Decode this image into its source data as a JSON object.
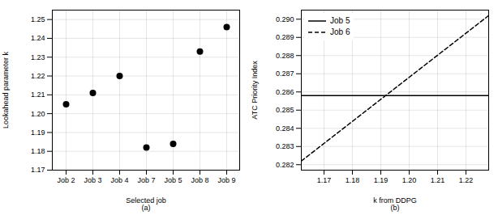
{
  "chart_data": [
    {
      "type": "scatter",
      "x_label": "Selected job\n(a)",
      "y_label": "Lookahead parameter k",
      "categories": [
        "Job 2",
        "Job 3",
        "Job 4",
        "Job 7",
        "Job 5",
        "Job 8",
        "Job 9"
      ],
      "values": [
        1.205,
        1.211,
        1.22,
        1.182,
        1.184,
        1.233,
        1.246
      ],
      "color": "black",
      "ylim": [
        1.17,
        1.255
      ],
      "yticks": [
        1.17,
        1.18,
        1.19,
        {
          "value": 1.2,
          "label": "1.20"
        },
        1.21,
        1.22,
        1.23,
        1.24,
        1.25
      ],
      "grid": true
    },
    {
      "type": "line",
      "x_label": "k from DDPG\n(b)",
      "y_label": "ATC Priority Index",
      "x": [
        1.162,
        1.228
      ],
      "series": [
        {
          "name": "Job 5",
          "color": "black",
          "line_style": "solid",
          "values": [
            0.2858,
            0.2858
          ]
        },
        {
          "name": "Job 6",
          "color": "black",
          "line_style": "dashed",
          "values": [
            0.2822,
            0.2902
          ]
        }
      ],
      "xlim": [
        1.162,
        1.228
      ],
      "ylim": [
        0.2817,
        0.2905
      ],
      "xticks": [
        1.17,
        1.18,
        1.19,
        {
          "value": 1.2,
          "label": "1.20"
        },
        1.21,
        1.22
      ],
      "yticks": [
        0.282,
        0.283,
        0.284,
        0.285,
        0.286,
        0.287,
        0.288,
        0.289,
        {
          "value": 0.29,
          "label": "0.290"
        }
      ],
      "grid": true,
      "legend": "upper left"
    }
  ]
}
